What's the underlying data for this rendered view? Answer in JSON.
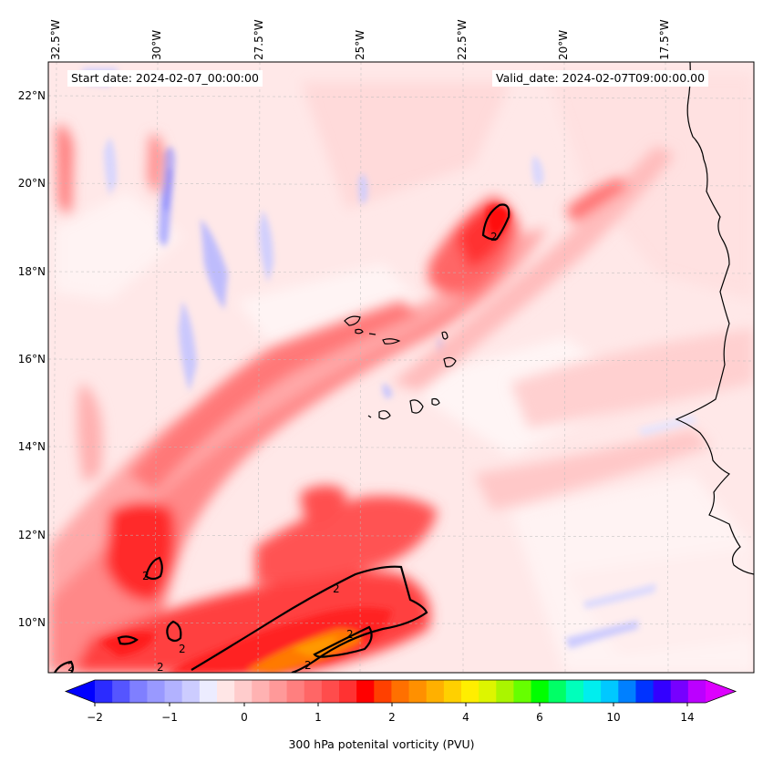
{
  "header": {
    "start_date": "Start date: 2024-02-07_00:00:00",
    "valid_date": "Valid_date: 2024-02-07T09:00:00.00"
  },
  "map": {
    "longitude_labels": [
      "32.5°W",
      "30°W",
      "27.5°W",
      "25°W",
      "22.5°W",
      "20°W",
      "17.5°W"
    ],
    "latitude_labels": [
      "22°N",
      "20°N",
      "18°N",
      "16°N",
      "14°N",
      "12°N",
      "10°N"
    ],
    "contour_label": "2"
  },
  "colorbar": {
    "label": "300 hPa potenital vorticity (PVU)",
    "tick_labels": [
      "−2",
      "−1",
      "0",
      "1",
      "2",
      "4",
      "6",
      "10",
      "14"
    ],
    "colors": [
      "#0000ff",
      "#2b2bff",
      "#5555ff",
      "#7f7fff",
      "#9999ff",
      "#b2b2ff",
      "#ccccff",
      "#ececff",
      "#ffe6e6",
      "#ffcccc",
      "#ffb2b2",
      "#ff9999",
      "#ff7f7f",
      "#ff6666",
      "#ff4c4c",
      "#ff3232",
      "#ff0000",
      "#ff4000",
      "#ff7000",
      "#ff9000",
      "#ffb000",
      "#ffd000",
      "#ffee00",
      "#ddf500",
      "#aaf500",
      "#66ff00",
      "#00ff00",
      "#00ff66",
      "#00ffbb",
      "#00eeee",
      "#00c8ff",
      "#0080ff",
      "#0033ff",
      "#3300ff",
      "#7700ff",
      "#bb00ff",
      "#dd00ff"
    ]
  }
}
